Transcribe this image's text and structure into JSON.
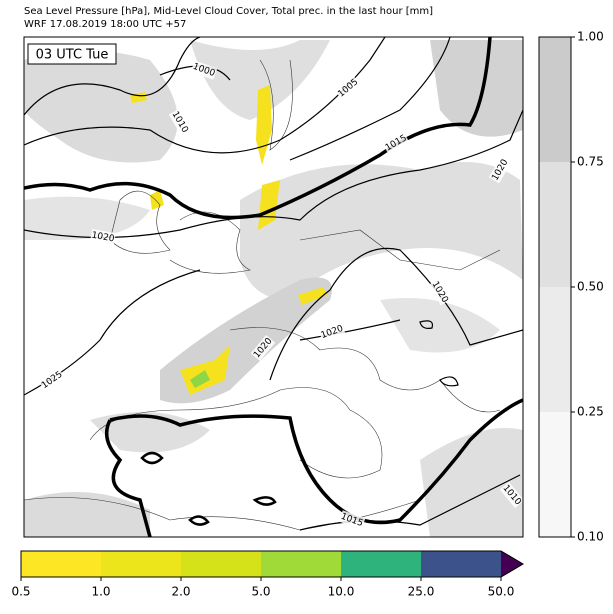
{
  "header": {
    "title": "Sea Level Pressure [hPa], Mid-Level Cloud Cover, Total prec. in the last hour [mm]",
    "subtitle": "WRF 17.08.2019 18:00 UTC +57"
  },
  "time_label": "03 UTC Tue",
  "contour_labels": [
    "1000",
    "1005",
    "1010",
    "1015",
    "1020",
    "1020",
    "1020",
    "1020",
    "1020",
    "1025",
    "1015",
    "1010"
  ],
  "cloud_colorbar": {
    "ticks": [
      "0.10",
      "0.25",
      "0.50",
      "0.75",
      "1.00"
    ],
    "colors": [
      "#f7f7f7",
      "#ebebeb",
      "#e0e0e0",
      "#cbcbcb"
    ]
  },
  "precip_colorbar": {
    "ticks": [
      "0.5",
      "1.0",
      "2.0",
      "5.0",
      "10.0",
      "25.0",
      "50.0"
    ],
    "colors": [
      "#fde725",
      "#ede51b",
      "#d5e21a",
      "#a0da39",
      "#2eb37c",
      "#3b528b"
    ],
    "extend_color": "#440154"
  }
}
